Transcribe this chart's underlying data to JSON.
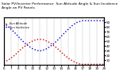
{
  "title": "Solar PV/Inverter Performance  Sun Altitude Angle & Sun Incidence Angle on PV Panels",
  "background_color": "#ffffff",
  "grid_color": "#bbbbbb",
  "x_start": 6,
  "x_end": 20,
  "x_ticks": [
    6,
    7,
    8,
    9,
    10,
    11,
    12,
    13,
    14,
    15,
    16,
    17,
    18,
    19,
    20
  ],
  "altitude_color": "#cc0000",
  "incidence_color": "#0000cc",
  "altitude_x": [
    6.0,
    6.5,
    7.0,
    7.5,
    8.0,
    8.5,
    9.0,
    9.5,
    10.0,
    10.5,
    11.0,
    11.5,
    12.0,
    12.5,
    13.0,
    13.5,
    14.0,
    14.5,
    15.0,
    15.5,
    16.0,
    16.5,
    17.0,
    17.5,
    18.0,
    18.5,
    19.0,
    19.5,
    20.0
  ],
  "altitude_y": [
    5,
    9,
    14,
    20,
    27,
    34,
    40,
    46,
    50,
    53,
    54,
    53,
    50,
    46,
    40,
    34,
    27,
    20,
    14,
    9,
    5,
    2,
    1,
    1,
    1,
    1,
    1,
    1,
    1
  ],
  "incidence_x": [
    6.0,
    6.5,
    7.0,
    7.5,
    8.0,
    8.5,
    9.0,
    9.5,
    10.0,
    10.5,
    11.0,
    11.5,
    12.0,
    12.5,
    13.0,
    13.5,
    14.0,
    14.5,
    15.0,
    15.5,
    16.0,
    16.5,
    17.0,
    17.5,
    18.0,
    18.5,
    19.0,
    19.5,
    20.0
  ],
  "incidence_y": [
    88,
    82,
    75,
    68,
    60,
    52,
    45,
    39,
    34,
    31,
    29,
    31,
    34,
    39,
    45,
    52,
    60,
    68,
    75,
    82,
    88,
    91,
    93,
    93,
    93,
    93,
    93,
    93,
    93
  ],
  "ylim": [
    0,
    100
  ],
  "yticks_right": [
    10,
    20,
    30,
    40,
    50,
    60,
    70,
    80,
    90
  ],
  "legend_altitude": "Sun Altitude",
  "legend_incidence": "Sun Incidence",
  "title_fontsize": 3.2,
  "tick_fontsize": 3.0,
  "legend_fontsize": 2.5
}
